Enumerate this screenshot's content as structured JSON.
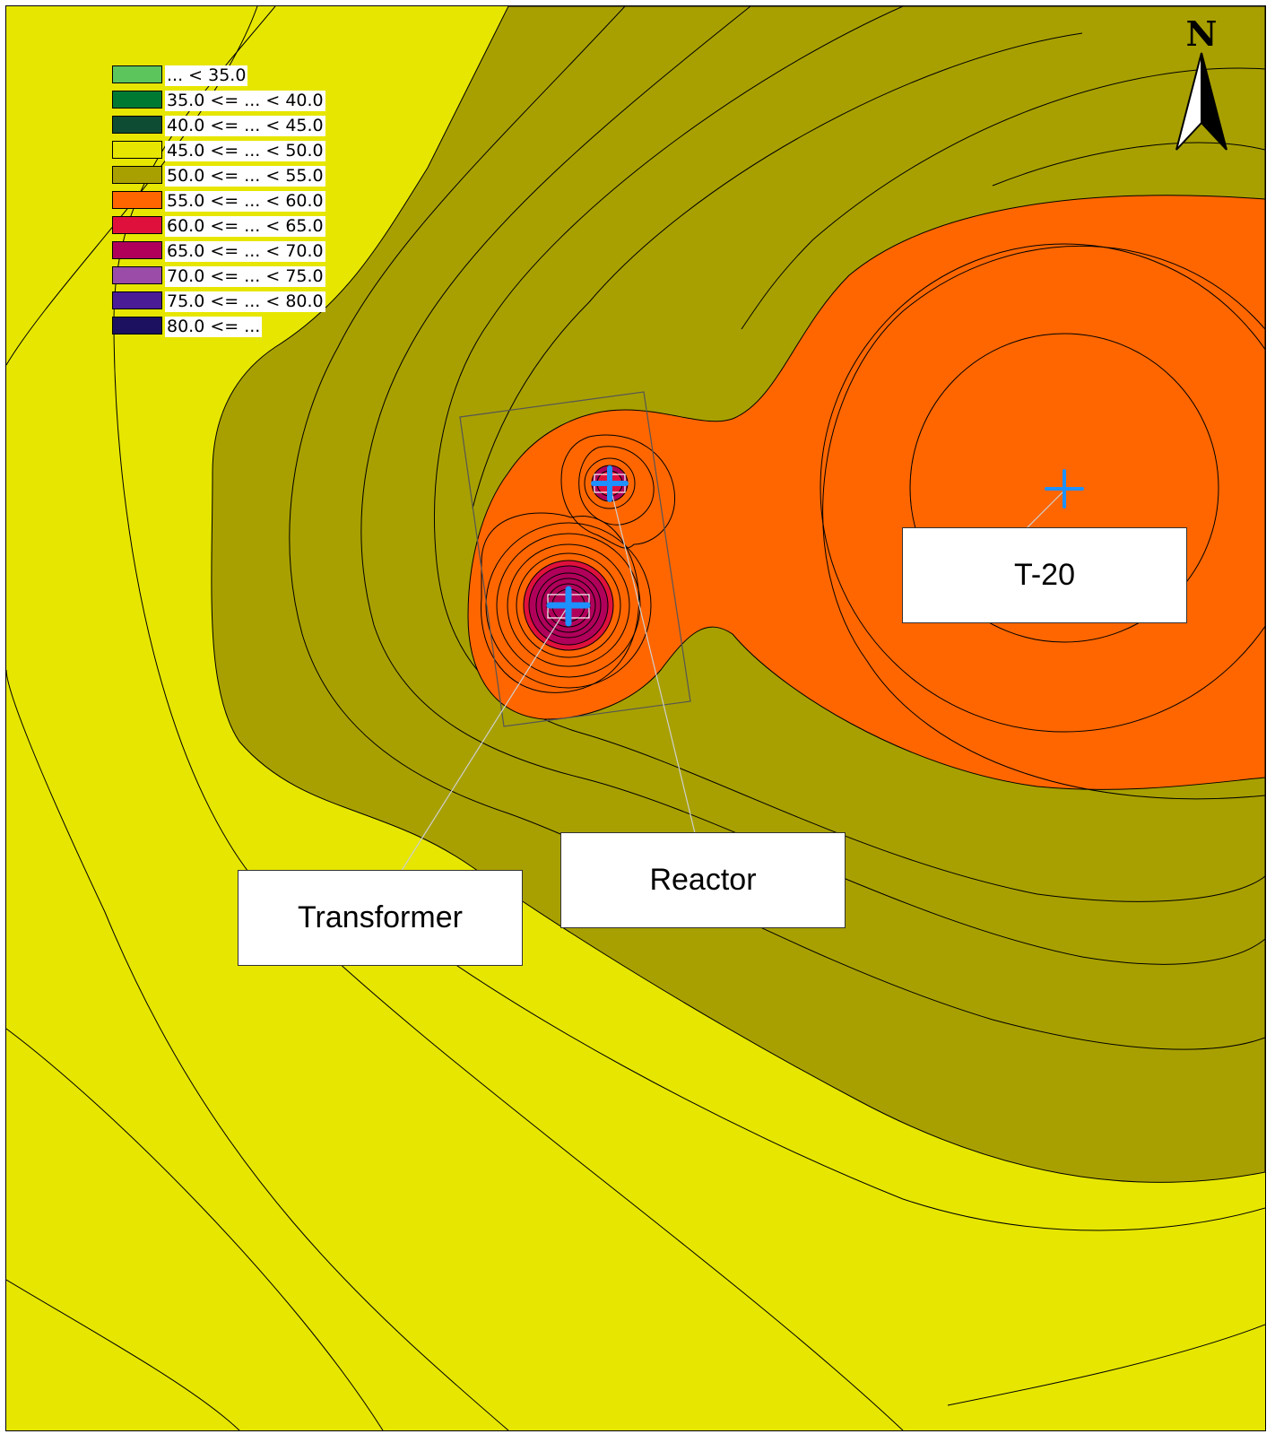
{
  "legend": {
    "items": [
      {
        "label": " ... < 35.0",
        "color": "#5cc65c"
      },
      {
        "label": "35.0 <= ... < 40.0",
        "color": "#007a33"
      },
      {
        "label": "40.0 <= ... < 45.0",
        "color": "#0e4d33"
      },
      {
        "label": "45.0 <= ... < 50.0",
        "color": "#e6e600"
      },
      {
        "label": "50.0 <= ... < 55.0",
        "color": "#a8a000"
      },
      {
        "label": "55.0 <= ... < 60.0",
        "color": "#ff6600"
      },
      {
        "label": "60.0 <= ... < 65.0",
        "color": "#e0103c"
      },
      {
        "label": "65.0 <= ... < 70.0",
        "color": "#b0005a"
      },
      {
        "label": "70.0 <= ... < 75.0",
        "color": "#9b4ca8"
      },
      {
        "label": "75.0 <= ... < 80.0",
        "color": "#4a1c96"
      },
      {
        "label": "80.0 <= ...",
        "color": "#1c1060"
      }
    ]
  },
  "north_arrow": {
    "label": "N"
  },
  "sources": {
    "t20": {
      "label": "T-20"
    },
    "reactor": {
      "label": "Reactor"
    },
    "transformer": {
      "label": "Transformer"
    }
  },
  "colors": {
    "band_45_50": "#e6e600",
    "band_50_55": "#a8a000",
    "band_55_60": "#ff6600",
    "band_60_65": "#e0103c",
    "band_65_70": "#b0005a",
    "source_marker": "#1e90ff"
  }
}
